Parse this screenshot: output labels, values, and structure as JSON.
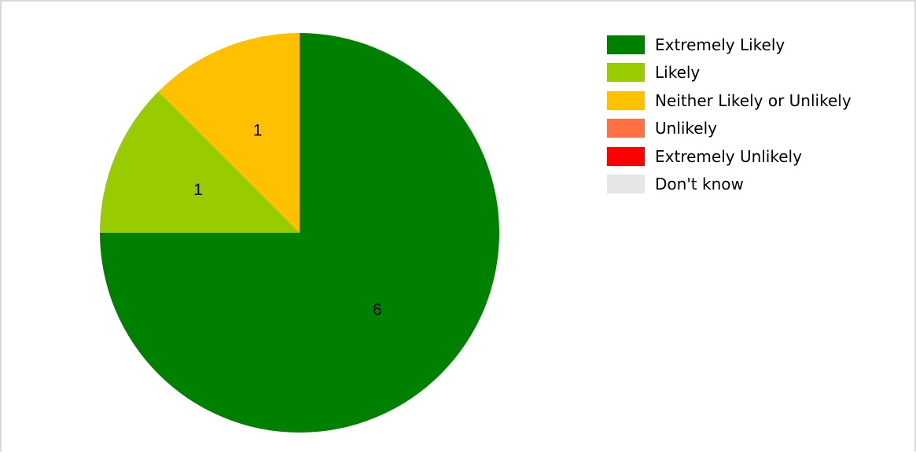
{
  "chart_data": {
    "type": "pie",
    "title": "",
    "categories": [
      "Extremely Likely",
      "Likely",
      "Neither Likely or Unlikely",
      "Unlikely",
      "Extremely Unlikely",
      "Don't know"
    ],
    "values": [
      6,
      1,
      1,
      0,
      0,
      0
    ],
    "colors": [
      "#008000",
      "#99cc00",
      "#ffc000",
      "#ff7043",
      "#ff0000",
      "#e6e6e6"
    ],
    "data_labels": [
      "6",
      "1",
      "1",
      "",
      "",
      ""
    ],
    "start_angle": "12 o'clock",
    "direction": "clockwise",
    "legend_position": "top-right",
    "grid": false
  }
}
